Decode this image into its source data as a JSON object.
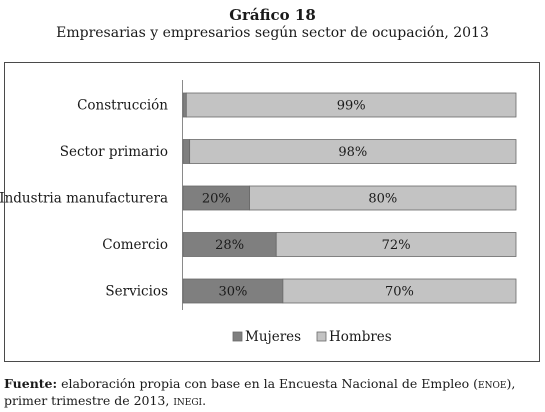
{
  "title": "Gráfico 18",
  "subtitle": "Empresarias y empresarios según sector de ocupación, 2013",
  "source": {
    "label": "Fuente:",
    "text_1": "elaboración propia con base en la Encuesta Nacional de Empleo (",
    "enoe": "enoe",
    "text_2": "), primer trimestre de 2013, ",
    "inegi": "inegi",
    "text_3": "."
  },
  "colors": {
    "mujeres": "#7f7f7f",
    "hombres": "#c3c3c3",
    "stroke": "#6a6a6a"
  },
  "chart_data": {
    "type": "bar",
    "orientation": "horizontal",
    "stacked": true,
    "categories": [
      "Construcción",
      "Sector primario",
      "Industria manufacturera",
      "Comercio",
      "Servicios"
    ],
    "series": [
      {
        "name": "Mujeres",
        "values": [
          1,
          2,
          20,
          28,
          30
        ],
        "labels": [
          "1%",
          "2%",
          "20%",
          "28%",
          "30%"
        ]
      },
      {
        "name": "Hombres",
        "values": [
          99,
          98,
          80,
          72,
          70
        ],
        "labels": [
          "99%",
          "98%",
          "80%",
          "72%",
          "70%"
        ]
      }
    ],
    "xlim": [
      0,
      100
    ],
    "grid": false,
    "legend": "bottom"
  }
}
